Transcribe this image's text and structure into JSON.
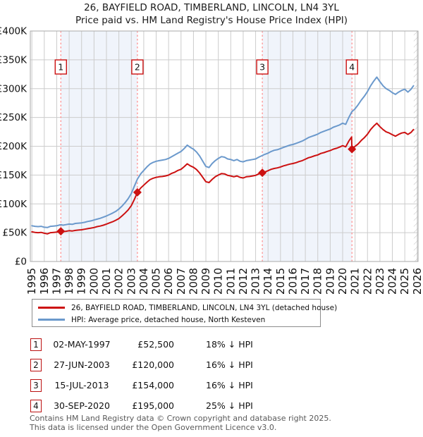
{
  "title": {
    "line1": "26, BAYFIELD ROAD, TIMBERLAND, LINCOLN, LN4 3YL",
    "line2": "Price paid vs. HM Land Registry's House Price Index (HPI)"
  },
  "legend": {
    "items": [
      {
        "label": "26, BAYFIELD ROAD, TIMBERLAND, LINCOLN, LN4 3YL (detached house)"
      },
      {
        "label": "HPI: Average price, detached house, North Kesteven"
      }
    ]
  },
  "footer": {
    "line1": "Contains HM Land Registry data © Crown copyright and database right 2025.",
    "line2": "This data is licensed under the Open Government Licence v3.0."
  },
  "chart_data": {
    "type": "line",
    "title": "26, BAYFIELD ROAD, TIMBERLAND, LINCOLN, LN4 3YL",
    "subtitle": "Price paid vs. HM Land Registry's House Price Index (HPI)",
    "xlabel": "",
    "ylabel": "",
    "units": "GBP thousands",
    "ylim_k": [
      0,
      400
    ],
    "ytick_values": [
      0,
      50,
      100,
      150,
      200,
      250,
      300,
      350,
      400
    ],
    "ytick_labels": [
      "£0",
      "£50K",
      "£100K",
      "£150K",
      "£200K",
      "£250K",
      "£300K",
      "£350K",
      "£400K"
    ],
    "x_years": [
      1995,
      1996,
      1997,
      1998,
      1999,
      2000,
      2001,
      2002,
      2003,
      2004,
      2005,
      2006,
      2007,
      2008,
      2009,
      2010,
      2011,
      2012,
      2013,
      2014,
      2015,
      2016,
      2017,
      2018,
      2019,
      2020,
      2021,
      2022,
      2023,
      2024,
      2025,
      2026
    ],
    "shaded_bands": [
      [
        1997.33,
        2003.49
      ],
      [
        2013.54,
        2020.75
      ]
    ],
    "hatch_from": 2025.72,
    "colors": {
      "property": "#cc1111",
      "hpi": "#6b99cc",
      "marker_line": "#ff8a8a",
      "band": "#f0f4fb",
      "grid": "#cccccc",
      "border": "#aaaaaa",
      "hatch": "#bbbbbb",
      "text": "#111111"
    },
    "series": [
      {
        "id": "hpi",
        "name": "HPI: Average price, detached house, North Kesteven",
        "color": "#6b99cc",
        "points": [
          [
            1995.0,
            62
          ],
          [
            1995.25,
            61
          ],
          [
            1995.5,
            60.5
          ],
          [
            1995.75,
            61
          ],
          [
            1996.0,
            59.5
          ],
          [
            1996.25,
            59
          ],
          [
            1996.5,
            61
          ],
          [
            1996.75,
            61.5
          ],
          [
            1997.0,
            62
          ],
          [
            1997.25,
            63.5
          ],
          [
            1997.33,
            64
          ],
          [
            1997.5,
            63
          ],
          [
            1997.75,
            64
          ],
          [
            1998.0,
            65
          ],
          [
            1998.25,
            64.5
          ],
          [
            1998.5,
            66
          ],
          [
            1998.75,
            66.5
          ],
          [
            1999.0,
            67
          ],
          [
            1999.25,
            68
          ],
          [
            1999.5,
            69.5
          ],
          [
            1999.75,
            70.5
          ],
          [
            2000.0,
            72
          ],
          [
            2000.25,
            73.5
          ],
          [
            2000.5,
            75
          ],
          [
            2000.75,
            77
          ],
          [
            2001.0,
            79
          ],
          [
            2001.25,
            81.5
          ],
          [
            2001.5,
            84
          ],
          [
            2001.75,
            87
          ],
          [
            2002.0,
            91
          ],
          [
            2002.25,
            96
          ],
          [
            2002.5,
            102
          ],
          [
            2002.75,
            109
          ],
          [
            2003.0,
            118
          ],
          [
            2003.25,
            131
          ],
          [
            2003.49,
            143
          ],
          [
            2003.75,
            152
          ],
          [
            2004.0,
            158
          ],
          [
            2004.25,
            164
          ],
          [
            2004.5,
            169
          ],
          [
            2004.75,
            172
          ],
          [
            2005.0,
            174
          ],
          [
            2005.25,
            175
          ],
          [
            2005.5,
            176
          ],
          [
            2005.75,
            177
          ],
          [
            2006.0,
            179
          ],
          [
            2006.25,
            182
          ],
          [
            2006.5,
            185
          ],
          [
            2006.75,
            188
          ],
          [
            2007.0,
            191
          ],
          [
            2007.25,
            196
          ],
          [
            2007.5,
            202
          ],
          [
            2007.75,
            198
          ],
          [
            2008.0,
            195
          ],
          [
            2008.25,
            190
          ],
          [
            2008.5,
            183
          ],
          [
            2008.75,
            174
          ],
          [
            2009.0,
            165
          ],
          [
            2009.25,
            163
          ],
          [
            2009.5,
            170
          ],
          [
            2009.75,
            175
          ],
          [
            2010.0,
            179
          ],
          [
            2010.25,
            182
          ],
          [
            2010.5,
            181
          ],
          [
            2010.75,
            178
          ],
          [
            2011.0,
            177
          ],
          [
            2011.25,
            175
          ],
          [
            2011.5,
            177
          ],
          [
            2011.75,
            174
          ],
          [
            2012.0,
            173
          ],
          [
            2012.25,
            175
          ],
          [
            2012.5,
            176
          ],
          [
            2012.75,
            177
          ],
          [
            2013.0,
            178
          ],
          [
            2013.25,
            181
          ],
          [
            2013.54,
            184
          ],
          [
            2013.75,
            186
          ],
          [
            2014.0,
            188
          ],
          [
            2014.25,
            191
          ],
          [
            2014.5,
            193
          ],
          [
            2014.75,
            194
          ],
          [
            2015.0,
            196
          ],
          [
            2015.25,
            198
          ],
          [
            2015.5,
            200
          ],
          [
            2015.75,
            202
          ],
          [
            2016.0,
            203
          ],
          [
            2016.25,
            205
          ],
          [
            2016.5,
            207
          ],
          [
            2016.75,
            209
          ],
          [
            2017.0,
            212
          ],
          [
            2017.25,
            215
          ],
          [
            2017.5,
            217
          ],
          [
            2017.75,
            219
          ],
          [
            2018.0,
            221
          ],
          [
            2018.25,
            224
          ],
          [
            2018.5,
            226
          ],
          [
            2018.75,
            228
          ],
          [
            2019.0,
            230
          ],
          [
            2019.25,
            233
          ],
          [
            2019.5,
            235
          ],
          [
            2019.75,
            237
          ],
          [
            2020.0,
            240
          ],
          [
            2020.25,
            238
          ],
          [
            2020.5,
            250
          ],
          [
            2020.75,
            260
          ],
          [
            2021.0,
            265
          ],
          [
            2021.25,
            272
          ],
          [
            2021.5,
            280
          ],
          [
            2021.75,
            287
          ],
          [
            2022.0,
            295
          ],
          [
            2022.25,
            305
          ],
          [
            2022.5,
            313
          ],
          [
            2022.75,
            320
          ],
          [
            2023.0,
            312
          ],
          [
            2023.25,
            305
          ],
          [
            2023.5,
            300
          ],
          [
            2023.75,
            297
          ],
          [
            2024.0,
            293
          ],
          [
            2024.25,
            290
          ],
          [
            2024.5,
            294
          ],
          [
            2024.75,
            297
          ],
          [
            2025.0,
            299
          ],
          [
            2025.25,
            294
          ],
          [
            2025.5,
            299
          ],
          [
            2025.7,
            305
          ]
        ]
      },
      {
        "id": "property",
        "name": "26, BAYFIELD ROAD, TIMBERLAND, LINCOLN, LN4 3YL (detached house)",
        "color": "#cc1111",
        "points": [
          [
            1995.0,
            51.5
          ],
          [
            1995.25,
            50.5
          ],
          [
            1995.5,
            50
          ],
          [
            1995.75,
            50.5
          ],
          [
            1996.0,
            49
          ],
          [
            1996.25,
            48
          ],
          [
            1996.5,
            50
          ],
          [
            1996.75,
            50.5
          ],
          [
            1997.0,
            51
          ],
          [
            1997.33,
            52.5
          ],
          [
            1997.5,
            52
          ],
          [
            1997.75,
            52.5
          ],
          [
            1998.0,
            53.5
          ],
          [
            1998.25,
            53
          ],
          [
            1998.5,
            54
          ],
          [
            1998.75,
            54.5
          ],
          [
            1999.0,
            55
          ],
          [
            1999.25,
            56
          ],
          [
            1999.5,
            57
          ],
          [
            1999.75,
            58
          ],
          [
            2000.0,
            59
          ],
          [
            2000.25,
            60.5
          ],
          [
            2000.5,
            61.5
          ],
          [
            2000.75,
            63
          ],
          [
            2001.0,
            65
          ],
          [
            2001.25,
            67
          ],
          [
            2001.5,
            69
          ],
          [
            2001.75,
            71.5
          ],
          [
            2002.0,
            74.5
          ],
          [
            2002.25,
            79
          ],
          [
            2002.5,
            84
          ],
          [
            2002.75,
            89.5
          ],
          [
            2003.0,
            97
          ],
          [
            2003.25,
            108
          ],
          [
            2003.49,
            120
          ],
          [
            2003.75,
            127.5
          ],
          [
            2004.0,
            132.5
          ],
          [
            2004.25,
            137.5
          ],
          [
            2004.5,
            142
          ],
          [
            2004.75,
            144.5
          ],
          [
            2005.0,
            146
          ],
          [
            2005.25,
            147
          ],
          [
            2005.5,
            147.5
          ],
          [
            2005.75,
            148.5
          ],
          [
            2006.0,
            150
          ],
          [
            2006.25,
            153
          ],
          [
            2006.5,
            155
          ],
          [
            2006.75,
            158
          ],
          [
            2007.0,
            160
          ],
          [
            2007.25,
            164.5
          ],
          [
            2007.5,
            169.5
          ],
          [
            2007.75,
            166
          ],
          [
            2008.0,
            163.5
          ],
          [
            2008.25,
            159.5
          ],
          [
            2008.5,
            153.5
          ],
          [
            2008.75,
            146
          ],
          [
            2009.0,
            138.5
          ],
          [
            2009.25,
            137
          ],
          [
            2009.5,
            142.5
          ],
          [
            2009.75,
            147
          ],
          [
            2010.0,
            150
          ],
          [
            2010.25,
            152.5
          ],
          [
            2010.5,
            152
          ],
          [
            2010.75,
            149.5
          ],
          [
            2011.0,
            148.5
          ],
          [
            2011.25,
            147
          ],
          [
            2011.5,
            148.5
          ],
          [
            2011.75,
            146
          ],
          [
            2012.0,
            145
          ],
          [
            2012.25,
            147
          ],
          [
            2012.5,
            147.5
          ],
          [
            2012.75,
            148.5
          ],
          [
            2013.0,
            149.5
          ],
          [
            2013.25,
            152
          ],
          [
            2013.54,
            154
          ],
          [
            2013.75,
            155.5
          ],
          [
            2014.0,
            157.5
          ],
          [
            2014.25,
            160
          ],
          [
            2014.5,
            161.5
          ],
          [
            2014.75,
            162.5
          ],
          [
            2015.0,
            164
          ],
          [
            2015.25,
            166
          ],
          [
            2015.5,
            167.5
          ],
          [
            2015.75,
            169
          ],
          [
            2016.0,
            170
          ],
          [
            2016.25,
            171.5
          ],
          [
            2016.5,
            173.5
          ],
          [
            2016.75,
            175
          ],
          [
            2017.0,
            177.5
          ],
          [
            2017.25,
            180
          ],
          [
            2017.5,
            181.5
          ],
          [
            2017.75,
            183.5
          ],
          [
            2018.0,
            185
          ],
          [
            2018.25,
            187.5
          ],
          [
            2018.5,
            189
          ],
          [
            2018.75,
            191
          ],
          [
            2019.0,
            192.5
          ],
          [
            2019.25,
            195
          ],
          [
            2019.5,
            196.5
          ],
          [
            2019.75,
            198.5
          ],
          [
            2020.0,
            201
          ],
          [
            2020.25,
            199
          ],
          [
            2020.5,
            209
          ],
          [
            2020.72,
            216
          ],
          [
            2020.75,
            195
          ],
          [
            2020.95,
            199
          ],
          [
            2021.25,
            204
          ],
          [
            2021.5,
            210
          ],
          [
            2021.75,
            215
          ],
          [
            2022.0,
            221
          ],
          [
            2022.25,
            229
          ],
          [
            2022.5,
            235
          ],
          [
            2022.75,
            240
          ],
          [
            2023.0,
            234
          ],
          [
            2023.25,
            229
          ],
          [
            2023.5,
            225
          ],
          [
            2023.75,
            223
          ],
          [
            2024.0,
            220
          ],
          [
            2024.25,
            217.5
          ],
          [
            2024.5,
            220.5
          ],
          [
            2024.75,
            223
          ],
          [
            2025.0,
            224
          ],
          [
            2025.25,
            220.5
          ],
          [
            2025.5,
            224
          ],
          [
            2025.7,
            229
          ]
        ]
      }
    ],
    "sales": [
      {
        "num": "1",
        "date": "02-MAY-1997",
        "year": 1997.33,
        "price_k": 52.5,
        "price_label": "£52,500",
        "vs_hpi": "18% ↓ HPI"
      },
      {
        "num": "2",
        "date": "27-JUN-2003",
        "year": 2003.49,
        "price_k": 120,
        "price_label": "£120,000",
        "vs_hpi": "16% ↓ HPI"
      },
      {
        "num": "3",
        "date": "15-JUL-2013",
        "year": 2013.54,
        "price_k": 154,
        "price_label": "£154,000",
        "vs_hpi": "16% ↓ HPI"
      },
      {
        "num": "4",
        "date": "30-SEP-2020",
        "year": 2020.75,
        "price_k": 195,
        "price_label": "£195,000",
        "vs_hpi": "25% ↓ HPI"
      }
    ]
  }
}
